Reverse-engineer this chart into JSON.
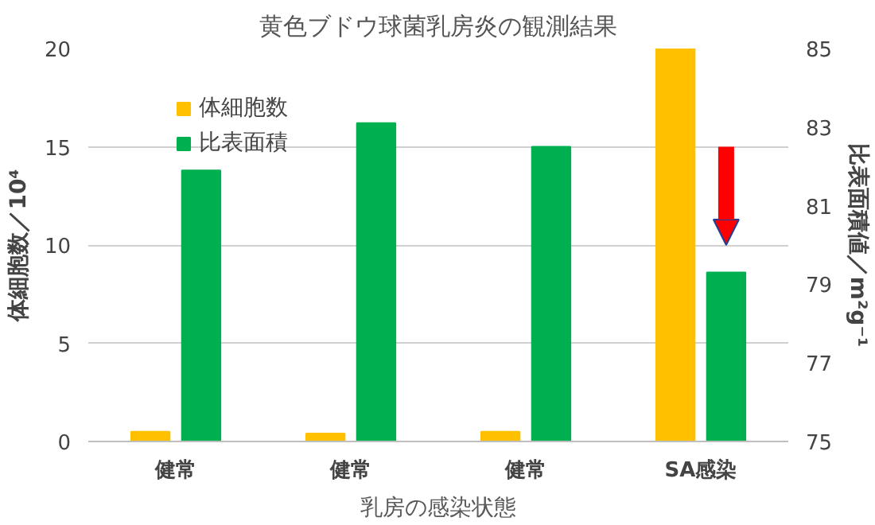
{
  "chart_data": {
    "type": "bar",
    "title": "黄色ブドウ球菌乳房炎の観測結果",
    "xlabel": "乳房の感染状態",
    "ylabel": "体細胞数／10⁴",
    "y2label": "比表面積値／m²g⁻¹",
    "categories": [
      "健常",
      "健常",
      "健常",
      "SA感染"
    ],
    "series": [
      {
        "name": "体細胞数",
        "color": "#ffc000",
        "values": [
          0.5,
          0.4,
          0.5,
          20
        ]
      },
      {
        "name": "比表面積",
        "color": "#00b050",
        "values": [
          81.9,
          83.1,
          82.5,
          79.3
        ],
        "axis": "y2"
      }
    ],
    "ylim": [
      0,
      20
    ],
    "yticks": [
      0,
      5,
      10,
      15,
      20
    ],
    "y2lim": [
      75,
      85
    ],
    "y2ticks": [
      75,
      77,
      79,
      81,
      83,
      85
    ],
    "grid": "y",
    "legend": "top left"
  }
}
